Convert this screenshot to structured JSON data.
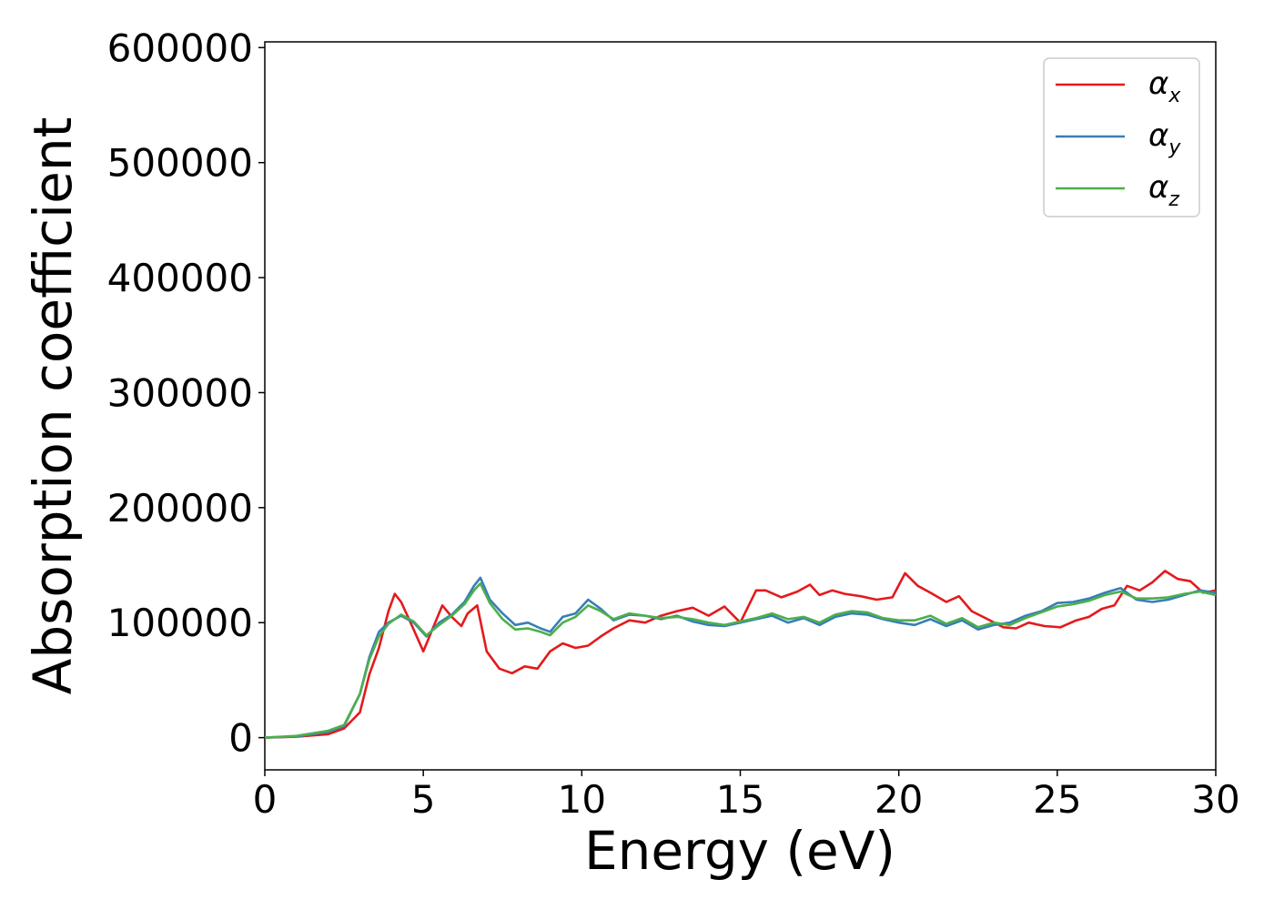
{
  "chart_data": {
    "type": "line",
    "title": "",
    "xlabel": "Energy (eV)",
    "ylabel": "Absorption coefficient",
    "xlim": [
      0,
      30
    ],
    "ylim": [
      -28000,
      605000
    ],
    "xticks": [
      0,
      5,
      10,
      15,
      20,
      25,
      30
    ],
    "yticks": [
      0,
      100000,
      200000,
      300000,
      400000,
      500000,
      600000
    ],
    "xtick_labels": [
      "0",
      "5",
      "10",
      "15",
      "20",
      "25",
      "30"
    ],
    "ytick_labels": [
      "0",
      "100000",
      "200000",
      "300000",
      "400000",
      "500000",
      "600000"
    ],
    "grid": false,
    "legend_position": "top-right",
    "series": [
      {
        "name": "αx",
        "legend_symbol": "α",
        "legend_sub": "x",
        "color": "#e41a1c",
        "x": [
          0,
          1,
          2,
          2.5,
          3,
          3.3,
          3.6,
          3.9,
          4.1,
          4.3,
          4.6,
          5,
          5.3,
          5.6,
          5.9,
          6.2,
          6.4,
          6.7,
          7,
          7.4,
          7.8,
          8.2,
          8.6,
          9,
          9.4,
          9.8,
          10.2,
          10.6,
          11,
          11.5,
          12,
          12.5,
          13,
          13.5,
          14,
          14.5,
          15,
          15.5,
          15.8,
          16.3,
          16.8,
          17.2,
          17.5,
          17.9,
          18.3,
          18.8,
          19.3,
          19.8,
          20.2,
          20.6,
          21,
          21.5,
          21.9,
          22.3,
          22.8,
          23.3,
          23.7,
          24.1,
          24.6,
          25.1,
          25.6,
          26,
          26.4,
          26.8,
          27.2,
          27.6,
          28,
          28.4,
          28.8,
          29.2,
          29.6,
          30
        ],
        "y": [
          0,
          800,
          3000,
          8000,
          22000,
          55000,
          78000,
          110000,
          125000,
          118000,
          100000,
          75000,
          95000,
          115000,
          105000,
          97000,
          108000,
          115000,
          75000,
          60000,
          56000,
          62000,
          60000,
          75000,
          82000,
          78000,
          80000,
          88000,
          95000,
          102000,
          100000,
          106000,
          110000,
          113000,
          106000,
          114000,
          100000,
          128000,
          128000,
          122000,
          127000,
          133000,
          124000,
          128000,
          125000,
          123000,
          120000,
          122000,
          143000,
          132000,
          126000,
          118000,
          123000,
          110000,
          103000,
          96000,
          95000,
          100000,
          97000,
          96000,
          102000,
          105000,
          112000,
          115000,
          132000,
          128000,
          135000,
          145000,
          138000,
          136000,
          126000,
          128000
        ]
      },
      {
        "name": "αy",
        "legend_symbol": "α",
        "legend_sub": "y",
        "color": "#377eb8",
        "x": [
          0,
          1,
          2,
          2.5,
          3,
          3.3,
          3.6,
          3.9,
          4.3,
          4.7,
          5.1,
          5.5,
          5.9,
          6.3,
          6.6,
          6.8,
          7.1,
          7.5,
          7.9,
          8.3,
          8.7,
          9,
          9.4,
          9.8,
          10.2,
          10.6,
          11,
          11.5,
          12,
          12.5,
          13,
          13.5,
          14,
          14.5,
          15,
          15.5,
          16,
          16.5,
          17,
          17.5,
          18,
          18.5,
          19,
          19.5,
          20,
          20.5,
          21,
          21.5,
          22,
          22.5,
          23,
          23.5,
          24,
          24.5,
          25,
          25.5,
          26,
          26.5,
          27,
          27.5,
          28,
          28.5,
          29,
          29.5,
          30
        ],
        "y": [
          0,
          1000,
          5000,
          10000,
          38000,
          70000,
          92000,
          100000,
          106000,
          100000,
          88000,
          100000,
          107000,
          118000,
          132000,
          139000,
          120000,
          108000,
          98000,
          100000,
          95000,
          92000,
          105000,
          108000,
          120000,
          112000,
          102000,
          107000,
          106000,
          103000,
          106000,
          101000,
          98000,
          97000,
          100000,
          103000,
          106000,
          100000,
          104000,
          98000,
          105000,
          108000,
          107000,
          103000,
          100000,
          98000,
          103000,
          97000,
          102000,
          94000,
          98000,
          100000,
          106000,
          110000,
          117000,
          118000,
          121000,
          126000,
          130000,
          120000,
          118000,
          120000,
          124000,
          128000,
          126000
        ]
      },
      {
        "name": "αz",
        "legend_symbol": "α",
        "legend_sub": "z",
        "color": "#4daf4a",
        "x": [
          0,
          1,
          2,
          2.5,
          3,
          3.3,
          3.6,
          3.9,
          4.3,
          4.7,
          5.1,
          5.5,
          5.9,
          6.3,
          6.6,
          6.8,
          7.1,
          7.5,
          7.9,
          8.3,
          8.7,
          9,
          9.4,
          9.8,
          10.2,
          10.6,
          11,
          11.5,
          12,
          12.5,
          13,
          13.5,
          14,
          14.5,
          15,
          15.5,
          16,
          16.5,
          17,
          17.5,
          18,
          18.5,
          19,
          19.5,
          20,
          20.5,
          21,
          21.5,
          22,
          22.5,
          23,
          23.5,
          24,
          24.5,
          25,
          25.5,
          26,
          26.5,
          27,
          27.5,
          28,
          28.5,
          29,
          29.5,
          30
        ],
        "y": [
          0,
          1500,
          6000,
          11000,
          38000,
          68000,
          88000,
          99000,
          107000,
          101000,
          89000,
          98000,
          106000,
          116000,
          128000,
          134000,
          117000,
          103000,
          94000,
          95000,
          92000,
          89000,
          100000,
          105000,
          115000,
          110000,
          103000,
          108000,
          106000,
          104000,
          105000,
          103000,
          100000,
          98000,
          101000,
          104000,
          108000,
          103000,
          105000,
          100000,
          107000,
          110000,
          109000,
          104000,
          102000,
          102000,
          106000,
          99000,
          104000,
          96000,
          100000,
          98000,
          104000,
          109000,
          114000,
          116000,
          119000,
          124000,
          127000,
          121000,
          121000,
          122000,
          125000,
          127000,
          124000
        ]
      }
    ]
  }
}
